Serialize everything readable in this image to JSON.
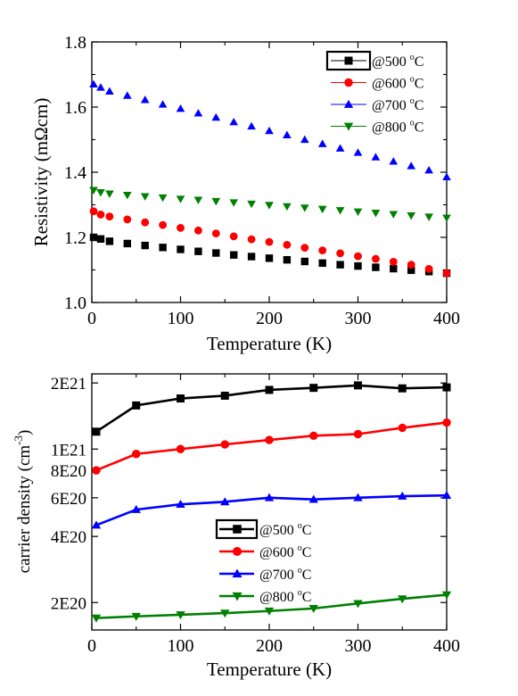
{
  "chart_data": [
    {
      "type": "scatter",
      "xlabel": "Temperature (K)",
      "ylabel": "Resistivity (mΩcm)",
      "xlim": [
        0,
        400
      ],
      "ylim": [
        1.0,
        1.8
      ],
      "x_ticks": [
        0,
        100,
        200,
        300,
        400
      ],
      "x_tick_labels": [
        "0",
        "100",
        "200",
        "300",
        "400"
      ],
      "y_ticks": [
        1.0,
        1.2,
        1.4,
        1.6,
        1.8
      ],
      "y_tick_labels": [
        "1.0",
        "1.2",
        "1.4",
        "1.6",
        "1.8"
      ],
      "grid": false,
      "legend_position": "top-right",
      "series": [
        {
          "name": "@500 °C",
          "color": "#000000",
          "marker": "square",
          "x": [
            2,
            10,
            20,
            40,
            60,
            80,
            100,
            120,
            140,
            160,
            180,
            200,
            220,
            240,
            260,
            280,
            300,
            320,
            340,
            360,
            380,
            400
          ],
          "values": [
            1.2,
            1.195,
            1.188,
            1.181,
            1.175,
            1.169,
            1.163,
            1.157,
            1.152,
            1.146,
            1.141,
            1.136,
            1.131,
            1.126,
            1.121,
            1.116,
            1.112,
            1.108,
            1.104,
            1.099,
            1.095,
            1.09
          ]
        },
        {
          "name": "@600 °C",
          "color": "#ff0000",
          "marker": "circle",
          "x": [
            2,
            10,
            20,
            40,
            60,
            80,
            100,
            120,
            140,
            160,
            180,
            200,
            220,
            240,
            260,
            280,
            300,
            320,
            340,
            360,
            380,
            400
          ],
          "values": [
            1.28,
            1.27,
            1.264,
            1.255,
            1.246,
            1.238,
            1.229,
            1.221,
            1.212,
            1.203,
            1.194,
            1.186,
            1.177,
            1.168,
            1.16,
            1.151,
            1.142,
            1.134,
            1.125,
            1.116,
            1.103,
            1.09
          ]
        },
        {
          "name": "@700 °C",
          "color": "#0000ff",
          "marker": "triangle-up",
          "x": [
            2,
            10,
            20,
            40,
            60,
            80,
            100,
            120,
            140,
            160,
            180,
            200,
            220,
            240,
            260,
            280,
            300,
            320,
            340,
            360,
            380,
            400
          ],
          "values": [
            1.67,
            1.66,
            1.648,
            1.635,
            1.622,
            1.608,
            1.595,
            1.581,
            1.568,
            1.554,
            1.541,
            1.527,
            1.514,
            1.5,
            1.487,
            1.473,
            1.46,
            1.446,
            1.433,
            1.419,
            1.406,
            1.385
          ]
        },
        {
          "name": "@800 °C",
          "color": "#008000",
          "marker": "triangle-down",
          "x": [
            2,
            10,
            20,
            40,
            60,
            80,
            100,
            120,
            140,
            160,
            180,
            200,
            220,
            240,
            260,
            280,
            300,
            320,
            340,
            360,
            380,
            400
          ],
          "values": [
            1.345,
            1.338,
            1.334,
            1.33,
            1.326,
            1.322,
            1.318,
            1.315,
            1.311,
            1.307,
            1.303,
            1.299,
            1.295,
            1.291,
            1.287,
            1.283,
            1.279,
            1.275,
            1.271,
            1.267,
            1.263,
            1.26
          ]
        }
      ]
    },
    {
      "type": "line",
      "xlabel": "Temperature (K)",
      "ylabel": "carrier density (cm",
      "ylabel_sup": "-3",
      "ylabel_close": ")",
      "xlim": [
        0,
        400
      ],
      "ylim": [
        1.5e+20,
        2.2e+21
      ],
      "yscale": "log",
      "x_ticks": [
        0,
        100,
        200,
        300,
        400
      ],
      "x_tick_labels": [
        "0",
        "100",
        "200",
        "300",
        "400"
      ],
      "y_ticks": [
        2e+20,
        4e+20,
        6e+20,
        8e+20,
        1e+21,
        2e+21
      ],
      "y_tick_labels": [
        "2E20",
        "4E20",
        "6E20",
        "8E20",
        "1E21",
        "2E21"
      ],
      "grid": false,
      "legend_position": "bottom-center",
      "series": [
        {
          "name": "@500 °C",
          "color": "#000000",
          "marker": "square",
          "x": [
            5,
            50,
            100,
            150,
            200,
            250,
            300,
            350,
            400
          ],
          "values": [
            1.2e+21,
            1.58e+21,
            1.7e+21,
            1.75e+21,
            1.86e+21,
            1.9e+21,
            1.95e+21,
            1.89e+21,
            1.91e+21
          ]
        },
        {
          "name": "@600 °C",
          "color": "#ff0000",
          "marker": "circle",
          "x": [
            5,
            50,
            100,
            150,
            200,
            250,
            300,
            350,
            400
          ],
          "values": [
            8e+20,
            9.5e+20,
            1e+21,
            1.05e+21,
            1.1e+21,
            1.15e+21,
            1.17e+21,
            1.25e+21,
            1.32e+21
          ]
        },
        {
          "name": "@700 °C",
          "color": "#0000ff",
          "marker": "triangle-up",
          "x": [
            5,
            50,
            100,
            150,
            200,
            250,
            300,
            350,
            400
          ],
          "values": [
            4.5e+20,
            5.3e+20,
            5.6e+20,
            5.75e+20,
            6e+20,
            5.9e+20,
            6e+20,
            6.1e+20,
            6.15e+20
          ]
        },
        {
          "name": "@800 °C",
          "color": "#008000",
          "marker": "triangle-down",
          "x": [
            5,
            50,
            100,
            150,
            200,
            250,
            300,
            350,
            400
          ],
          "values": [
            1.7e+20,
            1.73e+20,
            1.76e+20,
            1.79e+20,
            1.83e+20,
            1.88e+20,
            1.98e+20,
            2.08e+20,
            2.17e+20
          ]
        }
      ]
    }
  ]
}
